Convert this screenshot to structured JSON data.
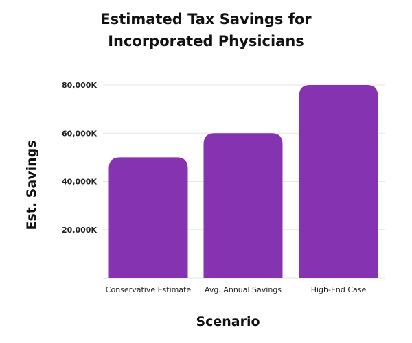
{
  "chart_data": {
    "type": "bar",
    "title_lines": [
      "Estimated Tax Savings for",
      "Incorporated Physicians"
    ],
    "xlabel": "Scenario",
    "ylabel": "Est. Savings",
    "categories": [
      "Conservative Estimate",
      "Avg. Annual Savings",
      "High-End Case"
    ],
    "values": [
      50000,
      60000,
      80000
    ],
    "ylim": [
      0,
      80000
    ],
    "yticks": [
      20000,
      40000,
      60000,
      80000
    ],
    "ytick_labels": [
      "20,000K",
      "40,000K",
      "60,000K",
      "80,000K"
    ],
    "grid": true,
    "bar_color": "#8533b0",
    "grid_color": "#e6e6e6"
  }
}
